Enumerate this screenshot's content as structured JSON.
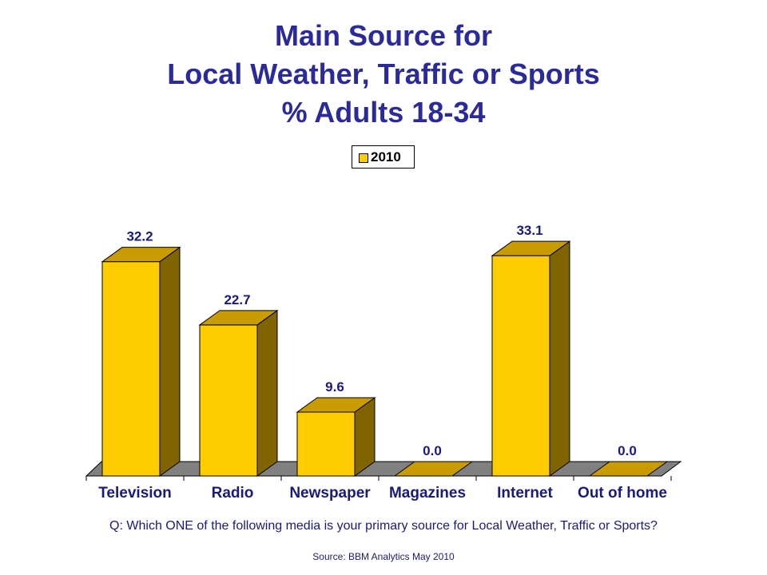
{
  "chart_data": {
    "type": "bar",
    "title_lines": [
      "Main Source for",
      "Local Weather, Traffic or Sports",
      "% Adults 18-34"
    ],
    "categories": [
      "Television",
      "Radio",
      "Newspaper",
      "Magazines",
      "Internet",
      "Out of home"
    ],
    "series": [
      {
        "name": "2010",
        "values": [
          32.2,
          22.7,
          9.6,
          0.0,
          33.1,
          0.0
        ]
      }
    ],
    "value_labels": [
      "32.2",
      "22.7",
      "9.6",
      "0.0",
      "33.1",
      "0.0"
    ],
    "ylim": [
      0,
      36
    ],
    "grid": false,
    "legend_position": "top-center",
    "three_d": true
  },
  "colors": {
    "title": "#2a2a9a",
    "bar_front": "#ffcc00",
    "bar_top": "#c89c00",
    "bar_side": "#7f6400",
    "floor": "#808080",
    "label_text": "#1a1a7a"
  },
  "question": "Q: Which ONE of the following media is your primary source for Local Weather, Traffic or Sports?",
  "source": "Source: BBM Analytics May 2010"
}
